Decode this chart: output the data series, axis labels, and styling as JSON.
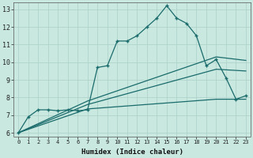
{
  "xlabel": "Humidex (Indice chaleur)",
  "xlim": [
    -0.5,
    23.5
  ],
  "ylim": [
    5.8,
    13.4
  ],
  "xticks": [
    0,
    1,
    2,
    3,
    4,
    5,
    6,
    7,
    8,
    9,
    10,
    11,
    12,
    13,
    14,
    15,
    16,
    17,
    18,
    19,
    20,
    21,
    22,
    23
  ],
  "yticks": [
    6,
    7,
    8,
    9,
    10,
    11,
    12,
    13
  ],
  "bg_color": "#c8e8e0",
  "line_color": "#1a6b6b",
  "grid_color": "#aad0c8",
  "main_line_x": [
    0,
    1,
    2,
    3,
    4,
    5,
    6,
    7,
    8,
    9,
    10,
    11,
    12,
    13,
    14,
    15,
    16,
    17,
    18,
    19,
    20,
    21,
    22,
    23
  ],
  "main_line_y": [
    6.0,
    6.9,
    7.3,
    7.3,
    7.25,
    7.3,
    7.25,
    7.3,
    9.7,
    9.8,
    11.2,
    11.2,
    11.5,
    12.0,
    12.5,
    13.2,
    12.5,
    12.2,
    11.5,
    9.8,
    10.15,
    9.1,
    7.9,
    8.1
  ],
  "line2_x": [
    0,
    7,
    20,
    23
  ],
  "line2_y": [
    6.0,
    7.8,
    10.3,
    10.1
  ],
  "line3_x": [
    0,
    7,
    20,
    23
  ],
  "line3_y": [
    6.0,
    7.6,
    9.6,
    9.5
  ],
  "line4_x": [
    0,
    7,
    20,
    23
  ],
  "line4_y": [
    6.0,
    7.35,
    7.9,
    7.9
  ]
}
